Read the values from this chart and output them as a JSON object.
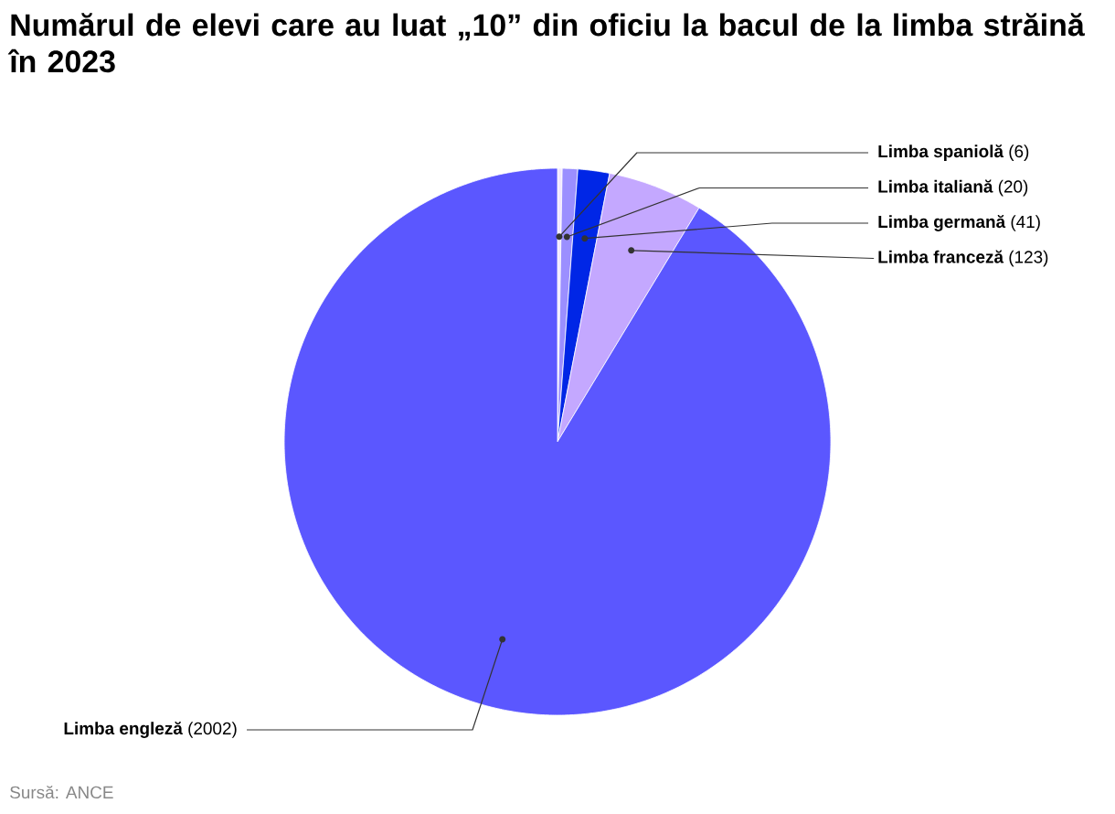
{
  "chart_data": {
    "type": "pie",
    "title": "Numărul de elevi care au luat „10” din oficiu la bacul de la limba străină în 2023",
    "categories": [
      "Limba spaniolă",
      "Limba italiană",
      "Limba germană",
      "Limba franceză",
      "Limba engleză"
    ],
    "values": [
      6,
      20,
      41,
      123,
      2002
    ],
    "value_labels": [
      "(6)",
      "(20)",
      "(41)",
      "(123)",
      "(2002)"
    ],
    "colors": [
      "#f3e8ff",
      "#9b8fff",
      "#0026e6",
      "#c4a8ff",
      "#5b57ff"
    ],
    "annotations": [
      "Sursă: ANCE"
    ]
  }
}
